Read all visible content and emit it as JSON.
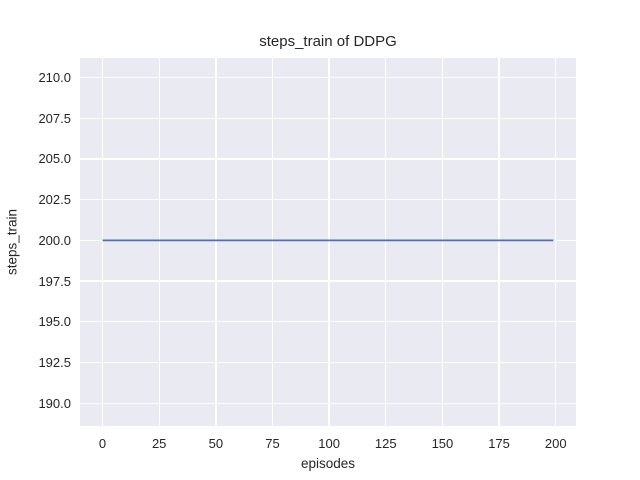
{
  "chart_data": {
    "type": "line",
    "title": "steps_train of DDPG",
    "xlabel": "episodes",
    "ylabel": "steps_train",
    "xlim": [
      -9.95,
      208.95
    ],
    "ylim": [
      188.6,
      211.2
    ],
    "xticks": [
      {
        "value": 0,
        "label": "0"
      },
      {
        "value": 25,
        "label": "25"
      },
      {
        "value": 50,
        "label": "50"
      },
      {
        "value": 75,
        "label": "75"
      },
      {
        "value": 100,
        "label": "100"
      },
      {
        "value": 125,
        "label": "125"
      },
      {
        "value": 150,
        "label": "150"
      },
      {
        "value": 175,
        "label": "175"
      },
      {
        "value": 200,
        "label": "200"
      }
    ],
    "yticks": [
      {
        "value": 210.0,
        "label": "210.0"
      },
      {
        "value": 207.5,
        "label": "207.5"
      },
      {
        "value": 205.0,
        "label": "205.0"
      },
      {
        "value": 202.5,
        "label": "202.5"
      },
      {
        "value": 200.0,
        "label": "200.0"
      },
      {
        "value": 197.5,
        "label": "197.5"
      },
      {
        "value": 195.0,
        "label": "195.0"
      },
      {
        "value": 192.5,
        "label": "192.5"
      },
      {
        "value": 190.0,
        "label": "190.0"
      }
    ],
    "series": [
      {
        "name": "steps_train",
        "color": "#4c72b0",
        "line_width": 1.8,
        "x": [
          0,
          199
        ],
        "y": [
          200,
          200
        ],
        "note": "constant value 200 for all episodes 0-199"
      }
    ],
    "grid": true,
    "legend": "none",
    "plot_background": "#eaeaf2",
    "grid_color": "#ffffff",
    "text_color": "#262626"
  }
}
